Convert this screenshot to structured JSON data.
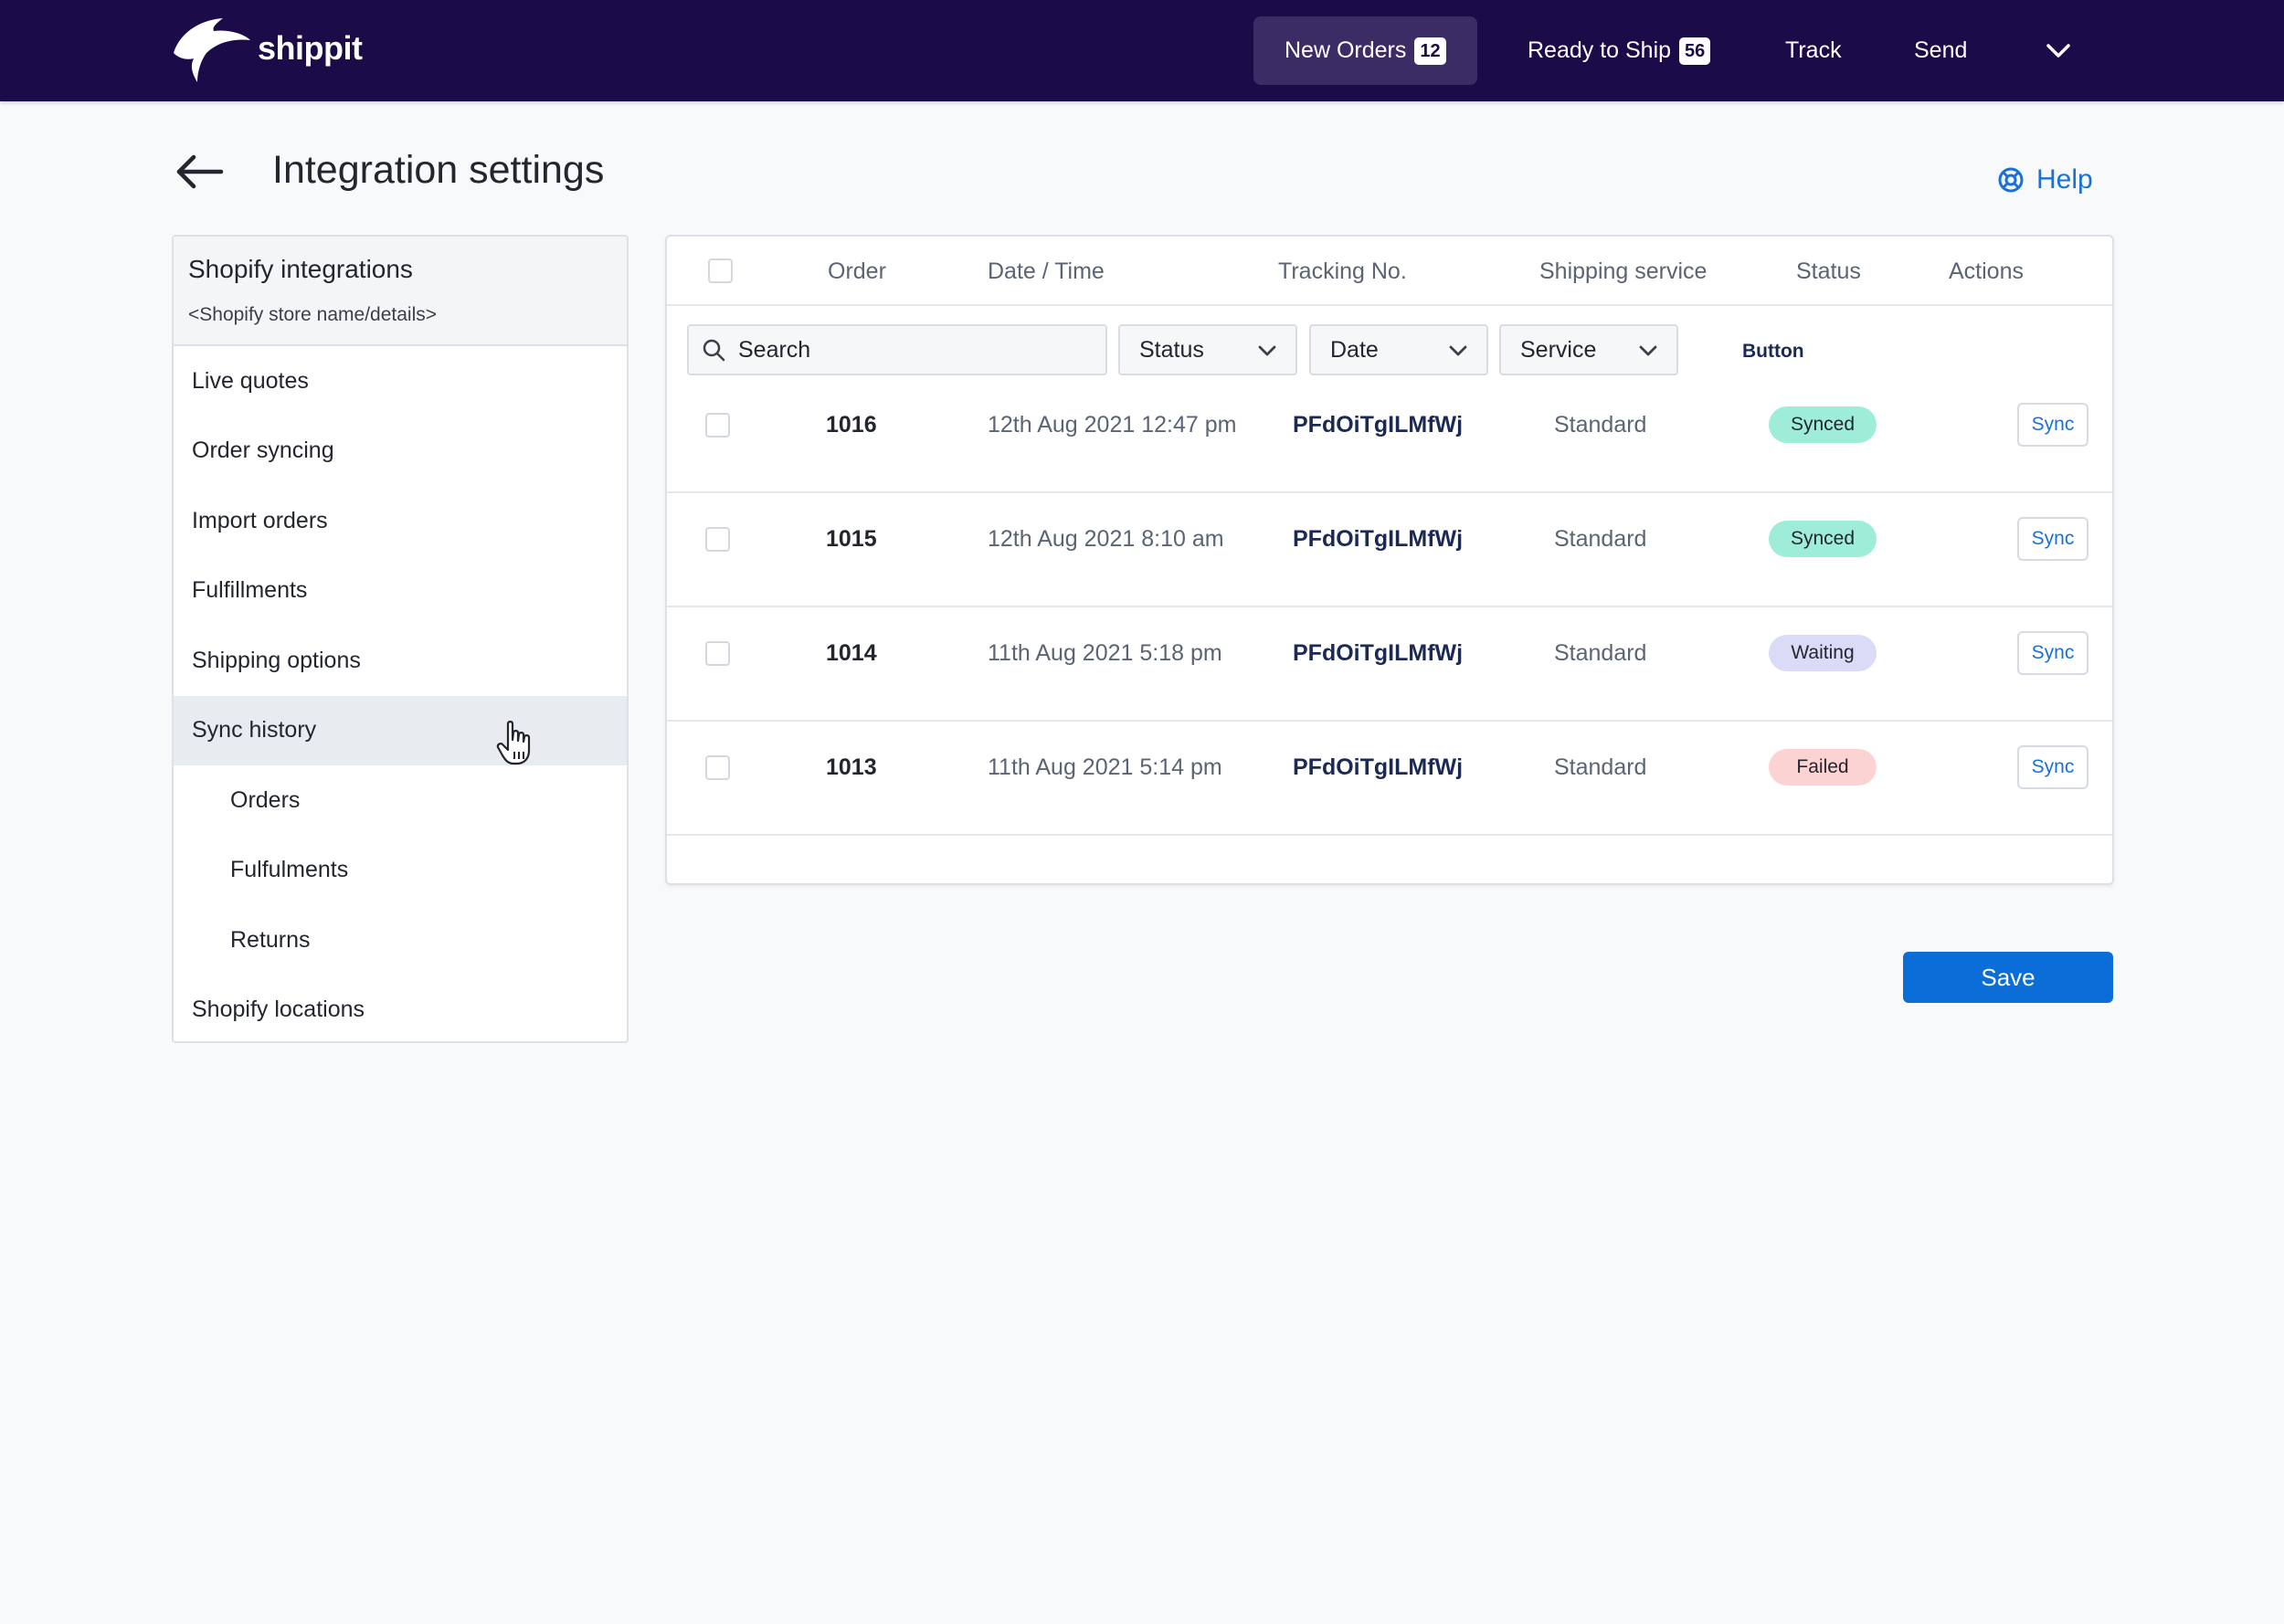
{
  "brand": {
    "name": "shippit"
  },
  "nav": {
    "items": [
      {
        "label": "New Orders",
        "badge": "12"
      },
      {
        "label": "Ready to Ship",
        "badge": "56"
      },
      {
        "label": "Track"
      },
      {
        "label": "Send"
      }
    ]
  },
  "page": {
    "title": "Integration settings",
    "help_label": "Help"
  },
  "sidebar": {
    "title": "Shopify integrations",
    "subtitle": "<Shopify store name/details>",
    "items": [
      {
        "label": "Live quotes"
      },
      {
        "label": "Order syncing"
      },
      {
        "label": "Import orders"
      },
      {
        "label": "Fulfillments"
      },
      {
        "label": "Shipping options"
      },
      {
        "label": "Sync history",
        "active": true
      },
      {
        "label": "Orders",
        "sub": true
      },
      {
        "label": "Fulfulments",
        "sub": true
      },
      {
        "label": "Returns",
        "sub": true
      },
      {
        "label": "Shopify locations"
      }
    ]
  },
  "table": {
    "columns": [
      "Order",
      "Date / Time",
      "Tracking No.",
      "Shipping service",
      "Status",
      "Actions"
    ],
    "filters": {
      "search_placeholder": "Search",
      "status_label": "Status",
      "date_label": "Date",
      "service_label": "Service",
      "button_label": "Button"
    },
    "rows": [
      {
        "order": "1016",
        "datetime": "12th Aug 2021 12:47 pm",
        "tracking": "PFdOiTgILMfWj",
        "service": "Standard",
        "status": "Synced",
        "action": "Sync"
      },
      {
        "order": "1015",
        "datetime": "12th Aug 2021 8:10 am",
        "tracking": "PFdOiTgILMfWj",
        "service": "Standard",
        "status": "Synced",
        "action": "Sync"
      },
      {
        "order": "1014",
        "datetime": "11th Aug 2021 5:18 pm",
        "tracking": "PFdOiTgILMfWj",
        "service": "Standard",
        "status": "Waiting",
        "action": "Sync"
      },
      {
        "order": "1013",
        "datetime": "11th Aug 2021 5:14 pm",
        "tracking": "PFdOiTgILMfWj",
        "service": "Standard",
        "status": "Failed",
        "action": "Sync"
      }
    ]
  },
  "status_colors": {
    "Synced": "#9eedd9",
    "Waiting": "#d9dbf7",
    "Failed": "#fbd3d3"
  },
  "colors": {
    "topbar": "#1b0b48",
    "accent": "#0b6ed8",
    "link": "#1771d6"
  },
  "save_label": "Save"
}
